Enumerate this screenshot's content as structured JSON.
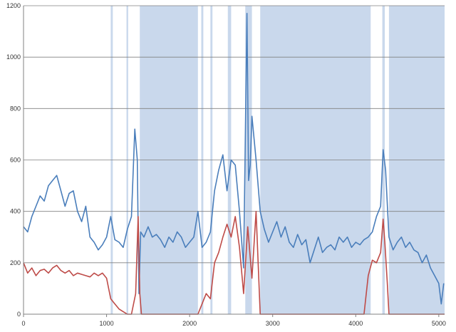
{
  "chart_data": {
    "type": "line",
    "title": "",
    "xlabel": "",
    "ylabel": "",
    "xlim": [
      0,
      5070
    ],
    "ylim": [
      0,
      1200
    ],
    "x_ticks": [
      0,
      1000,
      2000,
      3000,
      4000,
      5000
    ],
    "y_ticks": [
      0,
      200,
      400,
      600,
      800,
      1000,
      1200
    ],
    "grid": {
      "horizontal": true,
      "vertical": false
    },
    "legend": "none",
    "shaded_regions": [
      [
        1050,
        1075
      ],
      [
        1240,
        1260
      ],
      [
        1400,
        2100
      ],
      [
        2140,
        2165
      ],
      [
        2250,
        2275
      ],
      [
        2460,
        2500
      ],
      [
        2670,
        2750
      ],
      [
        2850,
        4180
      ],
      [
        4320,
        4350
      ],
      [
        4400,
        5070
      ]
    ],
    "shade_color": "#c9d8ec",
    "series": [
      {
        "color": "#4a7ebb",
        "x": [
          0,
          50,
          100,
          150,
          200,
          250,
          300,
          350,
          400,
          450,
          500,
          550,
          600,
          650,
          700,
          750,
          800,
          850,
          900,
          950,
          1000,
          1050,
          1100,
          1150,
          1200,
          1250,
          1300,
          1340,
          1370,
          1390,
          1410,
          1450,
          1500,
          1550,
          1600,
          1650,
          1700,
          1750,
          1800,
          1850,
          1900,
          1950,
          2000,
          2050,
          2100,
          2150,
          2200,
          2250,
          2300,
          2350,
          2400,
          2450,
          2500,
          2550,
          2600,
          2650,
          2690,
          2710,
          2730,
          2750,
          2800,
          2850,
          2900,
          2950,
          3000,
          3050,
          3100,
          3150,
          3200,
          3250,
          3300,
          3350,
          3400,
          3450,
          3500,
          3550,
          3600,
          3650,
          3700,
          3750,
          3800,
          3850,
          3900,
          3950,
          4000,
          4050,
          4100,
          4150,
          4200,
          4250,
          4300,
          4330,
          4360,
          4400,
          4450,
          4500,
          4550,
          4600,
          4650,
          4700,
          4750,
          4800,
          4850,
          4900,
          4950,
          5000,
          5030,
          5060
        ],
        "values": [
          340,
          320,
          380,
          420,
          460,
          440,
          500,
          520,
          540,
          480,
          420,
          470,
          480,
          400,
          360,
          420,
          300,
          280,
          250,
          270,
          300,
          380,
          290,
          280,
          260,
          330,
          380,
          720,
          600,
          80,
          320,
          300,
          340,
          300,
          310,
          290,
          260,
          300,
          280,
          320,
          300,
          260,
          280,
          300,
          400,
          260,
          280,
          320,
          480,
          560,
          620,
          480,
          600,
          580,
          400,
          180,
          1170,
          520,
          580,
          770,
          600,
          400,
          330,
          280,
          320,
          360,
          300,
          340,
          280,
          260,
          310,
          270,
          290,
          200,
          250,
          300,
          240,
          260,
          270,
          250,
          300,
          280,
          300,
          260,
          280,
          270,
          290,
          300,
          320,
          380,
          420,
          640,
          560,
          300,
          250,
          280,
          300,
          260,
          280,
          250,
          240,
          200,
          230,
          180,
          150,
          120,
          40,
          120
        ]
      },
      {
        "color": "#be4b48",
        "x": [
          0,
          50,
          100,
          150,
          200,
          250,
          300,
          350,
          400,
          450,
          500,
          550,
          600,
          650,
          700,
          750,
          800,
          850,
          900,
          950,
          1000,
          1050,
          1100,
          1150,
          1200,
          1250,
          1300,
          1350,
          1380,
          1400,
          1420,
          1500,
          1600,
          1700,
          1800,
          1900,
          2000,
          2100,
          2150,
          2200,
          2250,
          2300,
          2350,
          2400,
          2450,
          2500,
          2550,
          2600,
          2650,
          2700,
          2750,
          2800,
          2850,
          2900,
          3000,
          3100,
          3200,
          3300,
          3400,
          3500,
          3600,
          3700,
          3800,
          3900,
          4000,
          4100,
          4150,
          4200,
          4250,
          4300,
          4330,
          4350,
          4380,
          4400,
          4500,
          4600,
          4700,
          4800,
          4900,
          5000,
          5040,
          5070
        ],
        "values": [
          200,
          160,
          180,
          150,
          170,
          175,
          160,
          180,
          190,
          170,
          160,
          170,
          150,
          160,
          155,
          150,
          145,
          160,
          150,
          160,
          140,
          60,
          40,
          20,
          10,
          0,
          0,
          80,
          380,
          80,
          0,
          0,
          0,
          0,
          0,
          0,
          0,
          0,
          40,
          80,
          60,
          200,
          240,
          300,
          350,
          300,
          380,
          260,
          80,
          340,
          140,
          400,
          0,
          0,
          0,
          0,
          0,
          0,
          0,
          0,
          0,
          0,
          0,
          0,
          0,
          0,
          150,
          210,
          200,
          240,
          370,
          280,
          120,
          0,
          0,
          0,
          0,
          0,
          0,
          0,
          0,
          0
        ]
      }
    ]
  }
}
